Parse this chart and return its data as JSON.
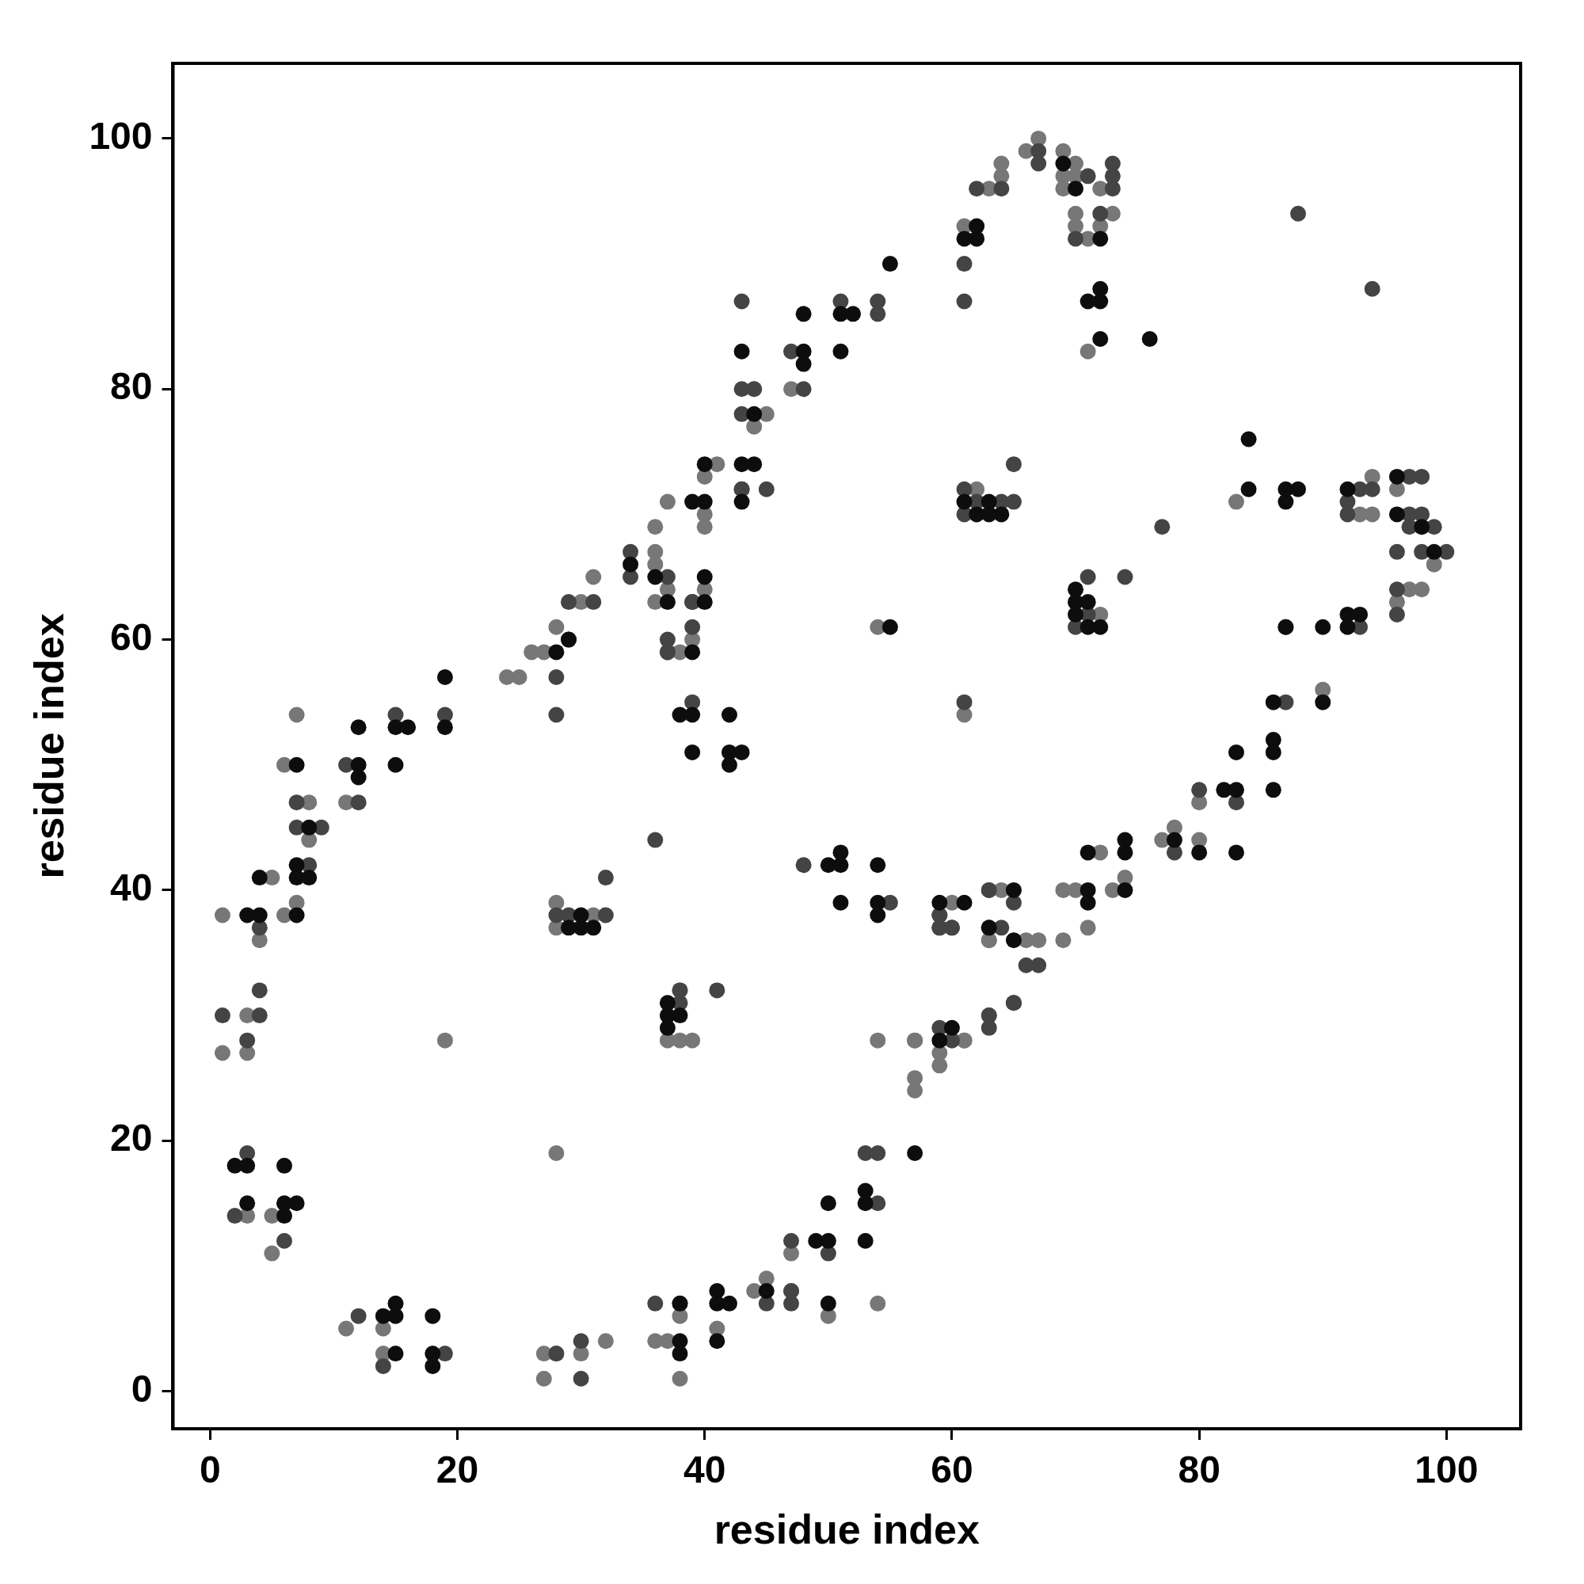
{
  "chart_data": {
    "type": "scatter",
    "xlabel": "residue index",
    "ylabel": "residue index",
    "xlim": [
      -3,
      106
    ],
    "ylim": [
      -3,
      106
    ],
    "xticks": [
      0,
      20,
      40,
      60,
      80,
      100
    ],
    "yticks": [
      0,
      20,
      40,
      60,
      80,
      100
    ],
    "grid": false,
    "legend": false,
    "marker": "circle",
    "series": [
      {
        "color": "#0d0d0d",
        "x": [
          3,
          4,
          4,
          2,
          3,
          3,
          6,
          7,
          6,
          6,
          7,
          8,
          7,
          7,
          8,
          7,
          12,
          12,
          12,
          15,
          16,
          15,
          19,
          19,
          14,
          15,
          15,
          15,
          18,
          18,
          18,
          29,
          28,
          30,
          29,
          30,
          31,
          34,
          36,
          37,
          39,
          39,
          40,
          40,
          40,
          40,
          38,
          39,
          39,
          42,
          42,
          43,
          42,
          37,
          37,
          37,
          38,
          38,
          38,
          38,
          41,
          41,
          42,
          41,
          43,
          44,
          43,
          44,
          43,
          48,
          48,
          48,
          51,
          52,
          51,
          55,
          50,
          51,
          51,
          51,
          54,
          54,
          54,
          45,
          49,
          50,
          50,
          50,
          53,
          53,
          53,
          57,
          60,
          59,
          55,
          62,
          61,
          62,
          69,
          70,
          72,
          71,
          72,
          72,
          72,
          76,
          61,
          63,
          62,
          63,
          64,
          70,
          70,
          71,
          70,
          71,
          72,
          84,
          84,
          87,
          88,
          87,
          92,
          96,
          96,
          98,
          99,
          87,
          90,
          92,
          93,
          92,
          86,
          90,
          86,
          86,
          86,
          83,
          82,
          83,
          83,
          80,
          78,
          71,
          74,
          74,
          74,
          71,
          71,
          65,
          63,
          65,
          59,
          61
        ],
        "values": [
          38,
          38,
          41,
          18,
          18,
          15,
          18,
          15,
          15,
          14,
          50,
          45,
          42,
          41,
          41,
          38,
          50,
          49,
          53,
          53,
          53,
          50,
          57,
          53,
          6,
          6,
          7,
          3,
          6,
          3,
          2,
          60,
          59,
          38,
          37,
          37,
          37,
          66,
          65,
          63,
          59,
          71,
          71,
          74,
          65,
          63,
          54,
          54,
          51,
          54,
          51,
          51,
          50,
          31,
          30,
          29,
          30,
          4,
          3,
          7,
          8,
          7,
          7,
          4,
          83,
          78,
          74,
          74,
          71,
          83,
          82,
          86,
          86,
          86,
          83,
          90,
          42,
          42,
          43,
          39,
          42,
          39,
          38,
          8,
          12,
          12,
          15,
          7,
          16,
          15,
          12,
          19,
          29,
          28,
          61,
          93,
          92,
          92,
          98,
          96,
          92,
          87,
          87,
          88,
          84,
          84,
          71,
          71,
          70,
          70,
          70,
          64,
          63,
          63,
          62,
          61,
          61,
          76,
          72,
          72,
          72,
          71,
          72,
          73,
          70,
          69,
          67,
          61,
          61,
          62,
          62,
          61,
          55,
          55,
          52,
          51,
          48,
          51,
          48,
          48,
          43,
          43,
          44,
          43,
          44,
          43,
          40,
          40,
          39,
          40,
          37,
          36,
          39,
          39
        ]
      },
      {
        "color": "#444444",
        "x": [
          1,
          4,
          4,
          4,
          3,
          3,
          2,
          6,
          7,
          7,
          9,
          8,
          11,
          12,
          15,
          19,
          12,
          14,
          19,
          28,
          28,
          29,
          29,
          31,
          28,
          29,
          32,
          32,
          28,
          30,
          30,
          34,
          34,
          37,
          37,
          36,
          39,
          37,
          37,
          38,
          39,
          39,
          36,
          38,
          43,
          38,
          39,
          41,
          44,
          43,
          43,
          45,
          43,
          43,
          47,
          48,
          51,
          54,
          54,
          48,
          55,
          45,
          47,
          47,
          47,
          50,
          53,
          54,
          54,
          59,
          60,
          59,
          59,
          60,
          61,
          61,
          61,
          62,
          64,
          67,
          67,
          71,
          73,
          73,
          73,
          72,
          70,
          61,
          62,
          64,
          65,
          61,
          65,
          71,
          71,
          70,
          74,
          77,
          88,
          94,
          93,
          94,
          92,
          92,
          97,
          98,
          97,
          98,
          96,
          97,
          98,
          99,
          100,
          98,
          96,
          96,
          93,
          87,
          87,
          83,
          80,
          78,
          63,
          65,
          63,
          64,
          65,
          65,
          66,
          67,
          59,
          59,
          60,
          63,
          63
        ],
        "values": [
          30,
          37,
          32,
          30,
          28,
          19,
          14,
          12,
          47,
          45,
          45,
          42,
          50,
          47,
          54,
          54,
          6,
          2,
          3,
          57,
          54,
          60,
          63,
          63,
          38,
          38,
          38,
          41,
          3,
          4,
          1,
          67,
          65,
          65,
          60,
          44,
          61,
          59,
          59,
          31,
          63,
          63,
          7,
          32,
          87,
          7,
          55,
          32,
          80,
          78,
          72,
          72,
          80,
          72,
          83,
          80,
          87,
          87,
          86,
          42,
          39,
          7,
          12,
          7,
          8,
          11,
          19,
          19,
          15,
          29,
          28,
          38,
          37,
          37,
          90,
          87,
          55,
          96,
          96,
          99,
          98,
          97,
          96,
          97,
          98,
          94,
          92,
          72,
          71,
          71,
          71,
          70,
          74,
          65,
          62,
          61,
          65,
          69,
          94,
          88,
          72,
          72,
          71,
          70,
          73,
          73,
          70,
          70,
          67,
          69,
          69,
          69,
          67,
          67,
          64,
          62,
          61,
          61,
          55,
          47,
          48,
          43,
          40,
          39,
          37,
          37,
          31,
          31,
          34,
          34,
          38,
          37,
          37,
          30,
          29
        ]
      },
      {
        "color": "#777777",
        "x": [
          1,
          1,
          5,
          4,
          3,
          3,
          3,
          5,
          5,
          7,
          6,
          8,
          8,
          7,
          6,
          11,
          19,
          11,
          14,
          14,
          24,
          25,
          26,
          27,
          28,
          30,
          31,
          28,
          28,
          31,
          28,
          27,
          28,
          27,
          30,
          32,
          36,
          37,
          36,
          36,
          37,
          36,
          38,
          39,
          40,
          41,
          40,
          40,
          40,
          38,
          37,
          38,
          39,
          36,
          37,
          38,
          38,
          41,
          44,
          44,
          45,
          47,
          47,
          44,
          45,
          47,
          50,
          54,
          54,
          57,
          57,
          57,
          57,
          61,
          59,
          59,
          61,
          54,
          61,
          63,
          64,
          64,
          66,
          67,
          69,
          70,
          69,
          70,
          69,
          72,
          70,
          73,
          70,
          72,
          71,
          71,
          63,
          62,
          83,
          94,
          93,
          94,
          96,
          97,
          98,
          96,
          99,
          90,
          72,
          80,
          80,
          78,
          77,
          72,
          74,
          73,
          69,
          70,
          71,
          63,
          64,
          63,
          66,
          67,
          69,
          60,
          61,
          63,
          65
        ],
        "values": [
          38,
          27,
          41,
          36,
          30,
          27,
          14,
          14,
          11,
          54,
          50,
          47,
          44,
          39,
          38,
          47,
          28,
          5,
          5,
          3,
          57,
          57,
          59,
          59,
          61,
          63,
          65,
          39,
          37,
          38,
          19,
          3,
          3,
          1,
          3,
          4,
          69,
          71,
          67,
          66,
          64,
          63,
          59,
          60,
          73,
          74,
          70,
          69,
          64,
          32,
          28,
          28,
          28,
          4,
          4,
          1,
          6,
          5,
          80,
          77,
          78,
          80,
          8,
          8,
          9,
          11,
          6,
          7,
          61,
          28,
          28,
          25,
          24,
          54,
          27,
          26,
          28,
          28,
          93,
          96,
          97,
          98,
          99,
          100,
          99,
          98,
          97,
          97,
          96,
          96,
          94,
          94,
          93,
          93,
          92,
          83,
          36,
          72,
          71,
          73,
          70,
          70,
          72,
          64,
          64,
          63,
          66,
          56,
          43,
          47,
          44,
          45,
          44,
          62,
          41,
          40,
          40,
          40,
          37,
          40,
          40,
          36,
          36,
          36,
          36,
          39,
          28,
          30,
          31
        ]
      }
    ]
  }
}
